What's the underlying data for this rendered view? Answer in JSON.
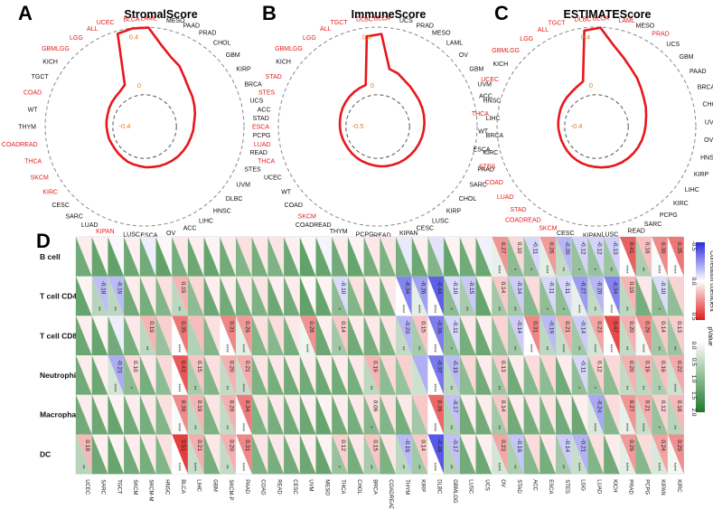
{
  "chart_data": [
    {
      "type": "radar",
      "panel": "A",
      "title": "StromalScore",
      "ticks": [
        "0.4",
        "0",
        "-0.4"
      ],
      "categories": [
        "LAML",
        "MESO",
        "PAAD",
        "PRAD",
        "CHOL",
        "GBM",
        "KIRP",
        "BRCA",
        "UCS",
        "STAD",
        "PCPG",
        "READ",
        "STES",
        "UVM",
        "DLBC",
        "HNSC",
        "LIHC",
        "ACC",
        "OV",
        "ESCA",
        "LUSC",
        "KIPAN",
        "LUAD",
        "SARC",
        "CESC",
        "KIRC",
        "SKCM",
        "THCA",
        "COADREAD",
        "THYM",
        "WT",
        "COAD",
        "TGCT",
        "KICH",
        "GBMLGG",
        "LGG",
        "ALL",
        "UCEC",
        "BLCA"
      ],
      "red_categories": [
        "LAML",
        "KIPAN",
        "KIRC",
        "SKCM",
        "THCA",
        "COADREAD",
        "COAD",
        "GBMLGG",
        "LGG",
        "ALL",
        "UCEC",
        "BLCA"
      ],
      "values": [
        0.44,
        0.3,
        0.22,
        0.18,
        0.12,
        0.08,
        0.06,
        0.04,
        0.02,
        0.0,
        -0.02,
        -0.05,
        -0.07,
        -0.09,
        -0.11,
        -0.13,
        -0.15,
        -0.17,
        -0.19,
        -0.2,
        -0.22,
        -0.23,
        -0.24,
        -0.26,
        -0.27,
        -0.28,
        -0.28,
        -0.27,
        -0.27,
        -0.26,
        -0.25,
        -0.24,
        -0.22,
        -0.2,
        -0.18,
        -0.15,
        -0.08,
        0.42,
        0.44
      ]
    },
    {
      "type": "radar",
      "panel": "B",
      "title": "ImmuneScore",
      "ticks": [
        "0.5",
        "0",
        "-0.5"
      ],
      "categories": [
        "BLCA",
        "UCS",
        "PRAD",
        "MESO",
        "LAML",
        "OV",
        "GBM",
        "UVM",
        "HNSC",
        "LIHC",
        "BRCA",
        "KIRC",
        "PAAD",
        "SARC",
        "CHOL",
        "KIRP",
        "LUSC",
        "CESC",
        "KIPAN",
        "READ",
        "PCPG",
        "THYM",
        "COADREAD",
        "SKCM",
        "COAD",
        "WT",
        "UCEC",
        "THCA",
        "LUAD",
        "ESCA",
        "ACC",
        "STES",
        "STAD",
        "KICH",
        "GBMLGG",
        "LGG",
        "ALL",
        "TGCT",
        "DLBC"
      ],
      "red_categories": [
        "BLCA",
        "SKCM",
        "THCA",
        "LUAD",
        "ESCA",
        "STES",
        "STAD",
        "GBMLGG",
        "LGG",
        "ALL",
        "TGCT",
        "DLBC"
      ],
      "values": [
        0.48,
        0.1,
        0.08,
        0.04,
        0.02,
        0.0,
        -0.02,
        -0.04,
        -0.06,
        -0.08,
        -0.1,
        -0.12,
        -0.14,
        -0.16,
        -0.18,
        -0.2,
        -0.22,
        -0.24,
        -0.26,
        -0.28,
        -0.3,
        -0.32,
        -0.33,
        -0.34,
        -0.35,
        -0.36,
        -0.36,
        -0.35,
        -0.34,
        -0.33,
        -0.32,
        -0.3,
        -0.28,
        -0.26,
        -0.24,
        -0.22,
        -0.2,
        -0.18,
        0.46
      ]
    },
    {
      "type": "radar",
      "panel": "C",
      "title": "ESTIMATEScore",
      "ticks": [
        "0.4",
        "0",
        "-0.4"
      ],
      "categories": [
        "BLCA",
        "LAML",
        "MESO",
        "PRAD",
        "UCS",
        "GBM",
        "PAAD",
        "BRCA",
        "CHOL",
        "UVM",
        "OV",
        "HNSC",
        "KIRP",
        "LIHC",
        "KIRC",
        "PCPG",
        "SARC",
        "READ",
        "LUSC",
        "KIPAN",
        "CESC",
        "SKCM",
        "COADREAD",
        "STAD",
        "LUAD",
        "COAD",
        "STES",
        "ESCA",
        "WT",
        "THCA",
        "ACC",
        "UCEC",
        "KICH",
        "GBMLGG",
        "LGG",
        "ALL",
        "TGCT",
        "DLBC"
      ],
      "red_categories": [
        "BLCA",
        "LAML",
        "PRAD",
        "SKCM",
        "COADREAD",
        "STAD",
        "LUAD",
        "COAD",
        "STES",
        "THCA",
        "UCEC",
        "GBMLGG",
        "LGG",
        "ALL",
        "TGCT",
        "DLBC"
      ],
      "values": [
        0.44,
        0.3,
        0.22,
        0.16,
        0.12,
        0.08,
        0.05,
        0.03,
        0.01,
        -0.01,
        -0.03,
        -0.05,
        -0.07,
        -0.09,
        -0.11,
        -0.13,
        -0.15,
        -0.17,
        -0.19,
        -0.21,
        -0.22,
        -0.23,
        -0.24,
        -0.25,
        -0.26,
        -0.27,
        -0.27,
        -0.27,
        -0.26,
        -0.25,
        -0.24,
        -0.22,
        -0.2,
        -0.18,
        -0.16,
        -0.12,
        -0.06,
        0.42
      ]
    },
    {
      "type": "heatmap",
      "panel": "D",
      "rows": [
        "B cell",
        "T cell CD4",
        "T cell CD8",
        "Neutrophil",
        "Macrophage",
        "DC"
      ],
      "columns": [
        "UCEC",
        "SARC",
        "TGCT",
        "SKCM",
        "SKCM-M",
        "HNSC",
        "BLCA",
        "LIHC",
        "GBM",
        "SKCM-P",
        "PAAD",
        "COAD",
        "READ",
        "CESC",
        "UVM",
        "MESO",
        "THCA",
        "CHOL",
        "BRCA",
        "COADREAD",
        "THYM",
        "KIRP",
        "DLBC",
        "GBMLGG",
        "LUSC",
        "UCS",
        "OV",
        "STAD",
        "ACC",
        "ESCA",
        "STES",
        "LGG",
        "LUAD",
        "KICH",
        "PRAD",
        "PCPG",
        "KIPAN",
        "KIRC"
      ],
      "values": [
        [
          0.05,
          0.03,
          -0.02,
          0.04,
          -0.05,
          0.02,
          0.06,
          0.04,
          0.03,
          0.05,
          0.08,
          0.06,
          0.07,
          0.04,
          0.02,
          -0.03,
          0.05,
          0.03,
          0.06,
          0.07,
          -0.06,
          0.04,
          -0.08,
          0.03,
          0.05,
          -0.04,
          0.27,
          0.1,
          -0.11,
          0.26,
          -0.2,
          -0.12,
          -0.12,
          -0.13,
          0.41,
          0.16,
          0.3,
          0.35
        ],
        [
          0.03,
          -0.18,
          -0.19,
          0.05,
          0.06,
          0.08,
          0.19,
          0.1,
          0.04,
          0.05,
          0.06,
          0.07,
          0.04,
          0.05,
          0.02,
          0.03,
          -0.1,
          0.08,
          0.05,
          0.06,
          -0.34,
          -0.26,
          -0.44,
          -0.1,
          -0.15,
          0.03,
          0.14,
          -0.14,
          0.09,
          -0.11,
          -0.11,
          -0.27,
          -0.2,
          -0.34,
          0.19,
          0.06,
          -0.1,
          0.11
        ],
        [
          0.04,
          0.03,
          -0.05,
          0.06,
          0.19,
          0.12,
          0.35,
          0.17,
          0.08,
          0.31,
          0.26,
          0.08,
          0.09,
          0.06,
          0.28,
          0.04,
          0.14,
          0.05,
          0.06,
          0.07,
          -0.2,
          0.15,
          -0.36,
          -0.11,
          0.06,
          0.04,
          0.11,
          -0.14,
          0.31,
          -0.19,
          0.21,
          -0.14,
          0.23,
          0.47,
          0.2,
          0.29,
          0.14,
          0.13
        ],
        [
          0.05,
          0.04,
          -0.23,
          0.1,
          0.06,
          0.1,
          0.43,
          0.15,
          0.08,
          0.2,
          0.21,
          0.07,
          0.06,
          0.05,
          0.05,
          0.04,
          0.05,
          0.06,
          0.19,
          0.1,
          0.12,
          -0.22,
          -0.37,
          -0.19,
          0.1,
          0.05,
          0.13,
          0.05,
          0.09,
          0.1,
          0.05,
          -0.11,
          0.12,
          0.1,
          0.2,
          0.19,
          0.16,
          0.22
        ],
        [
          0.05,
          0.04,
          0.03,
          0.05,
          0.06,
          0.08,
          0.3,
          0.19,
          0.07,
          0.2,
          0.34,
          0.07,
          0.06,
          0.05,
          0.04,
          0.03,
          0.05,
          0.06,
          0.09,
          0.08,
          0.06,
          0.14,
          0.39,
          -0.17,
          0.05,
          0.05,
          0.14,
          0.05,
          0.06,
          0.07,
          0.05,
          0.04,
          -0.24,
          0.09,
          0.27,
          0.21,
          0.12,
          0.18
        ],
        [
          0.18,
          0.04,
          0.03,
          0.05,
          0.06,
          0.08,
          0.51,
          0.21,
          0.06,
          0.2,
          0.31,
          0.07,
          0.06,
          0.05,
          0.04,
          0.03,
          0.12,
          0.06,
          0.15,
          0.07,
          -0.19,
          0.14,
          -0.46,
          -0.17,
          0.05,
          0.04,
          0.23,
          -0.16,
          0.09,
          0.06,
          -0.14,
          -0.21,
          0.08,
          0.05,
          0.26,
          0.09,
          0.24,
          0.29
        ]
      ],
      "printed_values": [
        [
          "",
          "",
          "",
          "",
          "",
          "",
          "",
          "",
          "",
          "",
          "",
          "",
          "",
          "",
          "",
          "",
          "",
          "",
          "",
          "",
          "",
          "",
          "",
          "",
          "",
          "",
          "0.27",
          "0.10",
          "-0.11",
          "0.26",
          "-0.20",
          "-0.12",
          "-0.12",
          "-0.13",
          "0.41",
          "0.16",
          "0.30",
          "0.35"
        ],
        [
          "",
          "-0.18",
          "-0.19",
          "",
          "",
          "",
          "0.19",
          "",
          "",
          "",
          "",
          "",
          "",
          "",
          "",
          "",
          "-0.10",
          "",
          "",
          "",
          "-0.34",
          "-0.26",
          "-0.44",
          "-0.10",
          "-0.15",
          "",
          "0.14",
          "-0.14",
          "",
          "-0.11",
          "-0.11",
          "-0.27",
          "-0.20",
          "-0.34",
          "0.19",
          "",
          "-0.10",
          ""
        ],
        [
          "",
          "",
          "",
          "",
          "0.19",
          "",
          "0.35",
          "",
          "",
          "0.31",
          "0.26",
          "",
          "",
          "",
          "0.28",
          "",
          "0.14",
          "",
          "",
          "",
          "-0.20",
          "0.15",
          "-0.36",
          "-0.11",
          "",
          "",
          "",
          "-0.14",
          "0.31",
          "-0.19",
          "0.21",
          "-0.14",
          "0.23",
          "0.47",
          "0.20",
          "0.29",
          "0.14",
          "0.13"
        ],
        [
          "",
          "",
          "-0.23",
          "0.10",
          "",
          "",
          "0.43",
          "0.15",
          "",
          "0.20",
          "0.21",
          "",
          "",
          "",
          "",
          "",
          "",
          "",
          "0.19",
          "",
          "",
          "",
          "-0.37",
          "-0.19",
          "",
          "",
          "0.13",
          "",
          "",
          "",
          "",
          "-0.11",
          "0.12",
          "",
          "0.20",
          "0.19",
          "0.16",
          "0.22"
        ],
        [
          "",
          "",
          "",
          "",
          "",
          "",
          "0.30",
          "0.19",
          "",
          "0.20",
          "0.34",
          "",
          "",
          "",
          "",
          "",
          "",
          "",
          "0.09",
          "",
          "",
          "",
          "0.39",
          "-0.17",
          "",
          "",
          "0.14",
          "",
          "",
          "",
          "",
          "",
          "-0.24",
          "",
          "0.27",
          "0.21",
          "0.12",
          "0.18"
        ],
        [
          "0.18",
          "",
          "",
          "",
          "",
          "",
          "0.51",
          "0.21",
          "",
          "0.20",
          "0.31",
          "",
          "",
          "",
          "",
          "",
          "0.12",
          "",
          "0.15",
          "",
          "-0.19",
          "0.14",
          "-0.46",
          "-0.17",
          "",
          "",
          "0.23",
          "-0.16",
          "",
          "",
          "-0.14",
          "-0.21",
          "",
          "",
          "0.26",
          "",
          "0.24",
          "0.29"
        ]
      ],
      "legend": {
        "color_title": "Correlation coefficient",
        "color_ticks": [
          "-0.5",
          "0.0",
          "0.5"
        ],
        "color_low": "#2a2adf",
        "color_mid": "#ffffff",
        "color_high": "#e01b1b",
        "p_title": "pValue",
        "p_ticks": [
          "0.0",
          "0.5",
          "1.0",
          "1.5",
          "2.0"
        ],
        "p_low": "#ffffff",
        "p_high": "#1f7a2a"
      },
      "panel_letter": "D"
    }
  ],
  "colors": {
    "polygon": "#e8171b",
    "circle": "#888888",
    "tick": "#e07b1a",
    "label_red": "#e21c1c"
  }
}
